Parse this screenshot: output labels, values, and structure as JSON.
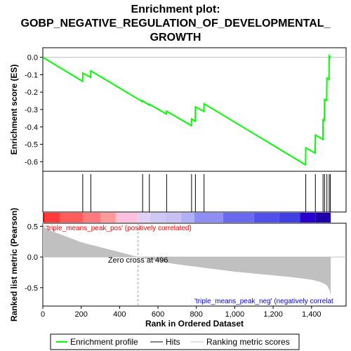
{
  "chart_data": {
    "type": "line",
    "title_lines": [
      "Enrichment plot:",
      "GOBP_NEGATIVE_REGULATION_OF_DEVELOPMENTAL_",
      "GROWTH"
    ],
    "ylabel_top": "Enrichment score (ES)",
    "ylabel_bottom": "Ranked list metric (Pearson)",
    "xlabel": "Rank in Ordered Dataset",
    "x_ticks": [
      "0",
      "200",
      "400",
      "600",
      "800",
      "1,000",
      "1,200",
      "1,400"
    ],
    "x_tick_values": [
      0,
      200,
      400,
      600,
      800,
      1000,
      1200,
      1400
    ],
    "es_ticks": [
      "0.0",
      "-0.1",
      "-0.2",
      "-0.3",
      "-0.4",
      "-0.5",
      "-0.6"
    ],
    "es_tick_values": [
      0.0,
      -0.1,
      -0.2,
      -0.3,
      -0.4,
      -0.5,
      -0.6
    ],
    "metric_ticks": [
      "0.5",
      "0.0",
      "-0.5"
    ],
    "metric_tick_values": [
      0.5,
      0.0,
      -0.5
    ],
    "xlim": [
      0,
      1580
    ],
    "es_ylim": [
      -0.655,
      0.055
    ],
    "metric_ylim": [
      -0.8,
      0.55
    ],
    "n_genes": 1500,
    "hits": [
      208,
      250,
      520,
      555,
      645,
      775,
      795,
      840,
      1370,
      1420,
      1460,
      1468,
      1480,
      1492,
      1498
    ],
    "es_points": [
      [
        0,
        0.0
      ],
      [
        207,
        -0.138
      ],
      [
        208,
        -0.09
      ],
      [
        249,
        -0.116
      ],
      [
        250,
        -0.078
      ],
      [
        519,
        -0.255
      ],
      [
        520,
        -0.25
      ],
      [
        554,
        -0.274
      ],
      [
        555,
        -0.27
      ],
      [
        644,
        -0.326
      ],
      [
        645,
        -0.31
      ],
      [
        774,
        -0.393
      ],
      [
        775,
        -0.355
      ],
      [
        794,
        -0.367
      ],
      [
        795,
        -0.285
      ],
      [
        839,
        -0.311
      ],
      [
        840,
        -0.267
      ],
      [
        1369,
        -0.618
      ],
      [
        1370,
        -0.52
      ],
      [
        1419,
        -0.551
      ],
      [
        1420,
        -0.447
      ],
      [
        1459,
        -0.472
      ],
      [
        1460,
        -0.358
      ],
      [
        1467,
        -0.362
      ],
      [
        1468,
        -0.242
      ],
      [
        1479,
        -0.248
      ],
      [
        1480,
        -0.12
      ],
      [
        1491,
        -0.127
      ],
      [
        1492,
        0.008
      ],
      [
        1498,
        0.0
      ],
      [
        1500,
        0.0
      ]
    ],
    "metric_points": [
      [
        0,
        0.58
      ],
      [
        10,
        0.48
      ],
      [
        40,
        0.43
      ],
      [
        100,
        0.36
      ],
      [
        200,
        0.24
      ],
      [
        300,
        0.16
      ],
      [
        400,
        0.08
      ],
      [
        496,
        0.0
      ],
      [
        600,
        -0.07
      ],
      [
        700,
        -0.12
      ],
      [
        800,
        -0.16
      ],
      [
        900,
        -0.2
      ],
      [
        1000,
        -0.24
      ],
      [
        1100,
        -0.27
      ],
      [
        1200,
        -0.3
      ],
      [
        1300,
        -0.33
      ],
      [
        1400,
        -0.37
      ],
      [
        1450,
        -0.41
      ],
      [
        1480,
        -0.46
      ],
      [
        1495,
        -0.55
      ],
      [
        1500,
        -0.64
      ]
    ],
    "zero_cross_label": "Zero cross at 496",
    "zero_cross_rank": 496,
    "pos_label": "'triple_means_peak_pos' (positively correlated)",
    "neg_label": "'triple_means_peak_neg' (negatively correlat",
    "legend": [
      "Enrichment profile",
      "Hits",
      "Ranking metric scores"
    ],
    "legend_placement": "bottom",
    "colors": {
      "es_line": "#00ff00",
      "hits": "#000000",
      "metric_fill": "#c0c0c0",
      "pos_text": "#ff0000",
      "neg_text": "#0000ff",
      "zero_line": "#c0c0c0"
    },
    "bar_segments": [
      {
        "start": 0,
        "end": 10,
        "color": "#ff0000"
      },
      {
        "start": 10,
        "end": 90,
        "color": "#ff3a3a"
      },
      {
        "start": 90,
        "end": 210,
        "color": "#ff5c5c"
      },
      {
        "start": 210,
        "end": 300,
        "color": "#ff7a7a"
      },
      {
        "start": 300,
        "end": 380,
        "color": "#ff9a9a"
      },
      {
        "start": 380,
        "end": 496,
        "color": "#ffc0e0"
      },
      {
        "start": 496,
        "end": 560,
        "color": "#e0d0f6"
      },
      {
        "start": 560,
        "end": 640,
        "color": "#d0c8f4"
      },
      {
        "start": 640,
        "end": 720,
        "color": "#c8c0f2"
      },
      {
        "start": 720,
        "end": 790,
        "color": "#b0b0f4"
      },
      {
        "start": 790,
        "end": 940,
        "color": "#8e8ef4"
      },
      {
        "start": 940,
        "end": 1100,
        "color": "#6a6aee"
      },
      {
        "start": 1100,
        "end": 1230,
        "color": "#5050ea"
      },
      {
        "start": 1230,
        "end": 1340,
        "color": "#4040e2"
      },
      {
        "start": 1340,
        "end": 1420,
        "color": "#2a00cc"
      },
      {
        "start": 1420,
        "end": 1500,
        "color": "#1e00a8"
      }
    ]
  }
}
